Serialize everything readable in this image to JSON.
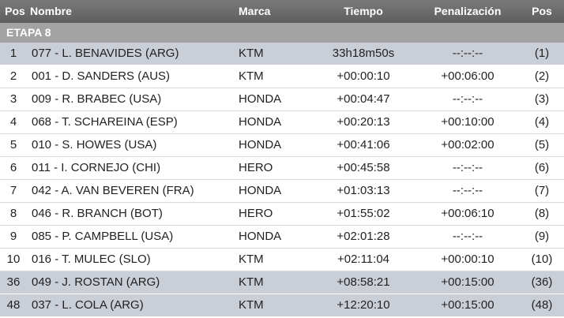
{
  "header": {
    "columns": [
      "Pos",
      "Nombre",
      "Marca",
      "Tiempo",
      "Penalización",
      "Pos"
    ]
  },
  "stage": "ETAPA 8",
  "table": {
    "rows": [
      [
        "1",
        "077 - L. BENAVIDES (ARG)",
        "KTM",
        "33h18m50s",
        "--:--:--",
        "(1)"
      ],
      [
        "2",
        "001 - D. SANDERS (AUS)",
        "KTM",
        "+00:00:10",
        "+00:06:00",
        "(2)"
      ],
      [
        "3",
        "009 - R. BRABEC (USA)",
        "HONDA",
        "+00:04:47",
        "--:--:--",
        "(3)"
      ],
      [
        "4",
        "068 - T. SCHAREINA (ESP)",
        "HONDA",
        "+00:20:13",
        "+00:10:00",
        "(4)"
      ],
      [
        "5",
        "010 - S. HOWES (USA)",
        "HONDA",
        "+00:41:06",
        "+00:02:00",
        "(5)"
      ],
      [
        "6",
        "011 - I. CORNEJO (CHI)",
        "HERO",
        "+00:45:58",
        "--:--:--",
        "(6)"
      ],
      [
        "7",
        "042 - A. VAN BEVEREN (FRA)",
        "HONDA",
        "+01:03:13",
        "--:--:--",
        "(7)"
      ],
      [
        "8",
        "046 - R. BRANCH (BOT)",
        "HERO",
        "+01:55:02",
        "+00:06:10",
        "(8)"
      ],
      [
        "9",
        "085 - P. CAMPBELL (USA)",
        "HONDA",
        "+02:01:28",
        "--:--:--",
        "(9)"
      ],
      [
        "10",
        "016 - T. MULEC (SLO)",
        "KTM",
        "+02:11:04",
        "+00:00:10",
        "(10)"
      ],
      [
        "36",
        "049 - J. ROSTAN (ARG)",
        "KTM",
        "+08:58:21",
        "+00:15:00",
        "(36)"
      ],
      [
        "48",
        "037 - L. COLA (ARG)",
        "KTM",
        "+12:20:10",
        "+00:15:00",
        "(48)"
      ]
    ]
  }
}
